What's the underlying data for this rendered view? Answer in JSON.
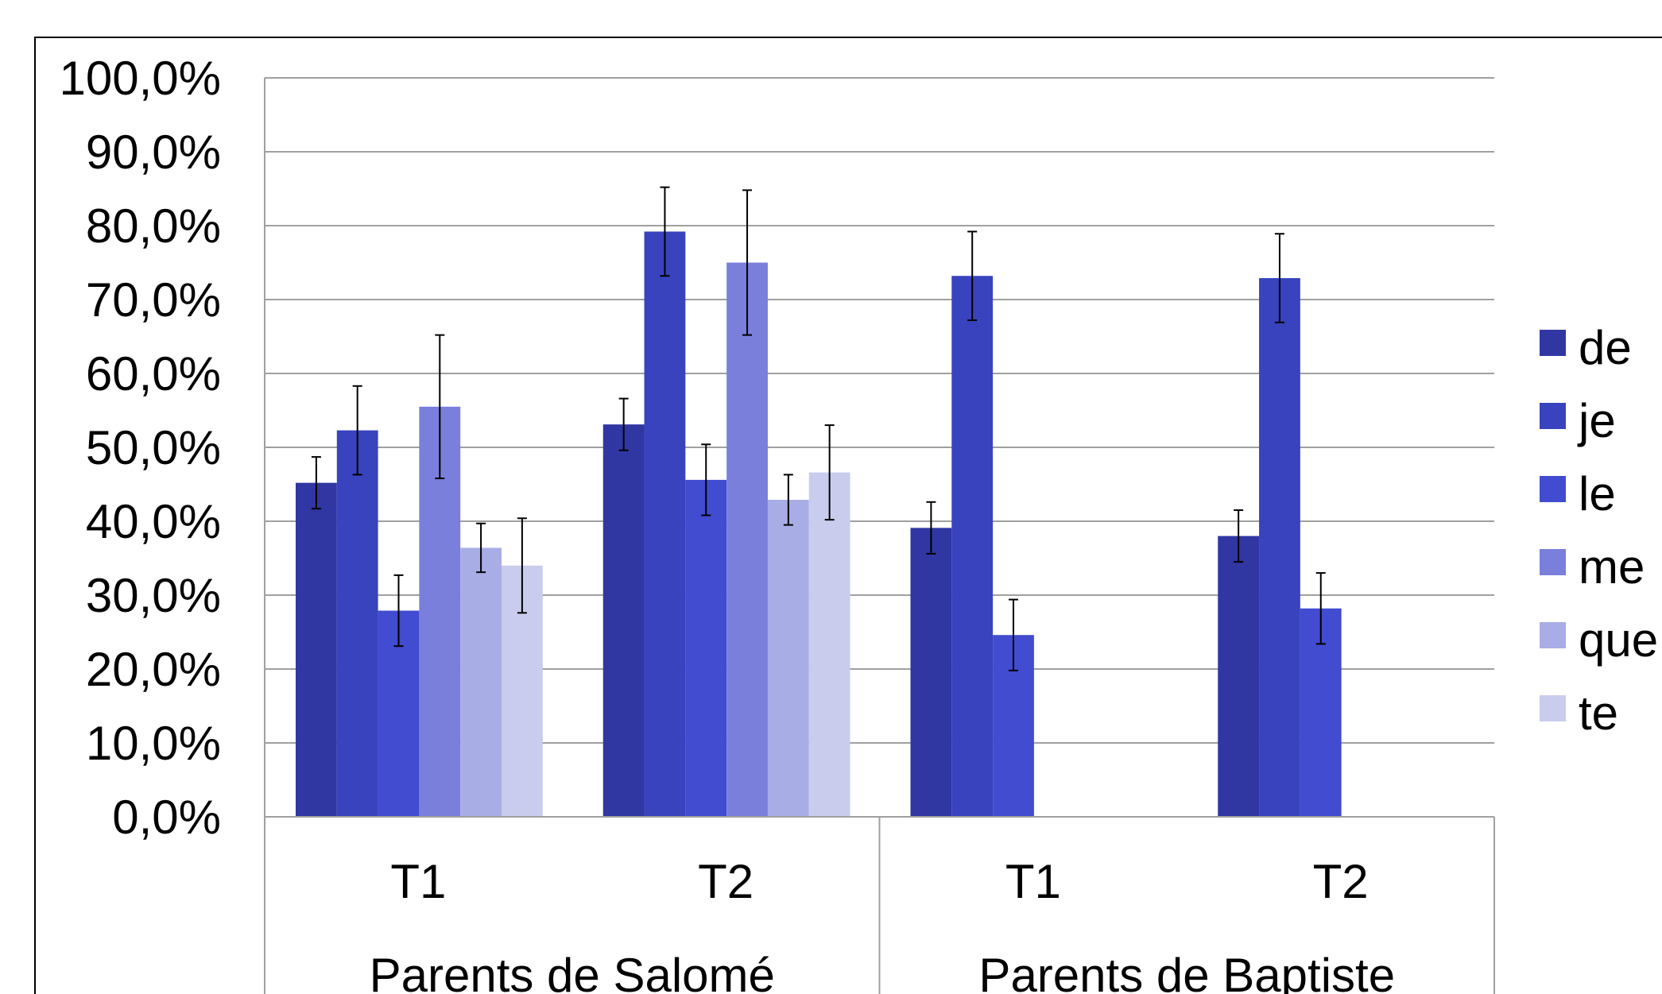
{
  "chart_data": {
    "type": "bar",
    "title": "",
    "xlabel": "",
    "ylabel": "",
    "ylim": [
      0,
      100
    ],
    "y_ticks": [
      "0,0%",
      "10,0%",
      "20,0%",
      "30,0%",
      "40,0%",
      "50,0%",
      "60,0%",
      "70,0%",
      "80,0%",
      "90,0%",
      "100,0%"
    ],
    "grid": true,
    "legend_position": "right",
    "categories": [
      "T1",
      "T2",
      "T1",
      "T2"
    ],
    "groups": [
      {
        "label": "Parents de Salomé",
        "categories": [
          "T1",
          "T2"
        ]
      },
      {
        "label": "Parents de Baptiste",
        "categories": [
          "T1",
          "T2"
        ]
      }
    ],
    "error_bars": true,
    "series": [
      {
        "name": "de",
        "color": "#3037A3",
        "values": [
          45.2,
          53.1,
          39.1,
          38.0
        ],
        "errors": [
          3.5,
          3.5,
          3.5,
          3.5
        ]
      },
      {
        "name": "je",
        "color": "#3843BD",
        "values": [
          52.3,
          79.2,
          73.2,
          72.9
        ],
        "errors": [
          6.0,
          6.0,
          6.0,
          6.0
        ]
      },
      {
        "name": "le",
        "color": "#414CD0",
        "values": [
          27.9,
          45.6,
          24.6,
          28.2
        ],
        "errors": [
          4.8,
          4.8,
          4.8,
          4.8
        ]
      },
      {
        "name": "me",
        "color": "#797FDB",
        "values": [
          55.5,
          75.0,
          null,
          null
        ],
        "errors": [
          9.7,
          9.8,
          null,
          null
        ]
      },
      {
        "name": "que",
        "color": "#A9ADE6",
        "values": [
          36.4,
          42.9,
          null,
          null
        ],
        "errors": [
          3.3,
          3.4,
          null,
          null
        ]
      },
      {
        "name": "te",
        "color": "#CACCED",
        "values": [
          34.0,
          46.6,
          null,
          null
        ],
        "errors": [
          6.4,
          6.4,
          null,
          null
        ]
      }
    ]
  }
}
